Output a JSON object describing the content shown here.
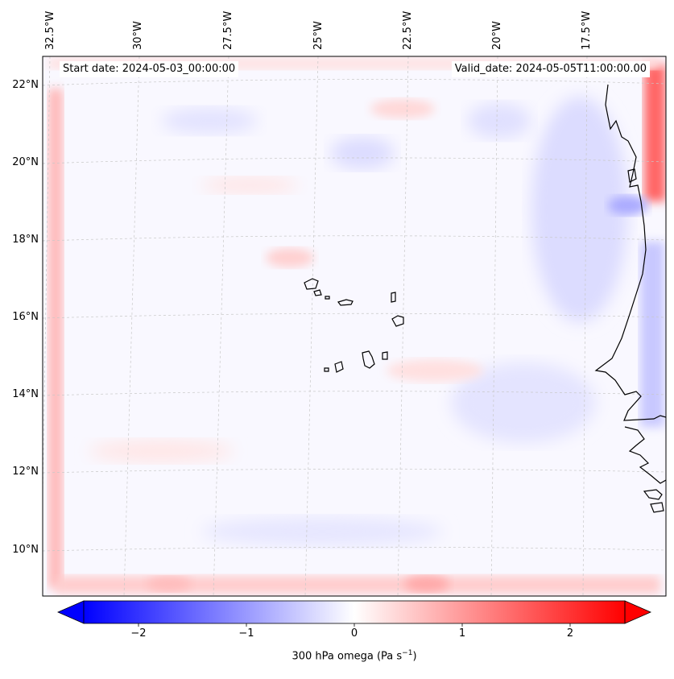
{
  "map": {
    "start_label": "Start date: 2024-05-03_00:00:00",
    "valid_label": "Valid_date: 2024-05-05T11:00:00.00",
    "lon_ticks": [
      "32.5°W",
      "30°W",
      "27.5°W",
      "25°W",
      "22.5°W",
      "20°W",
      "17.5°W"
    ],
    "lat_ticks": [
      "22°N",
      "20°N",
      "18°N",
      "16°N",
      "14°N",
      "12°N",
      "10°N"
    ],
    "extent": {
      "lon_min": -33.0,
      "lon_max": -15.5,
      "lat_min": 9.0,
      "lat_max": 22.8
    },
    "field": "300 hPa omega",
    "units": "Pa s-1"
  },
  "colorbar": {
    "label_prefix": "300 hPa omega (Pa s",
    "label_exp": "−1",
    "label_suffix": ")",
    "vmin": -2.5,
    "vmax": 2.5,
    "ticks": [
      "−2",
      "−1",
      "0",
      "1",
      "2"
    ],
    "tick_values": [
      -2,
      -1,
      0,
      1,
      2
    ],
    "colormap": "bwr",
    "neg_color": "#0000ff",
    "mid_color": "#ffffff",
    "pos_color": "#ff0000"
  },
  "colors": {
    "coastline": "#000000",
    "gridline": "#c8c8c8",
    "background": "#ffffff"
  }
}
